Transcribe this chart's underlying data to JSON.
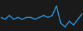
{
  "y": [
    4,
    3,
    5,
    3,
    4,
    3,
    4,
    4,
    3,
    4,
    5,
    4,
    5,
    10,
    1,
    -1,
    2,
    0,
    3,
    6
  ],
  "line_color": "#2b8fd4",
  "linewidth": 1.2,
  "background_color": "#1a1a1a",
  "ylim": [
    -3,
    13
  ]
}
